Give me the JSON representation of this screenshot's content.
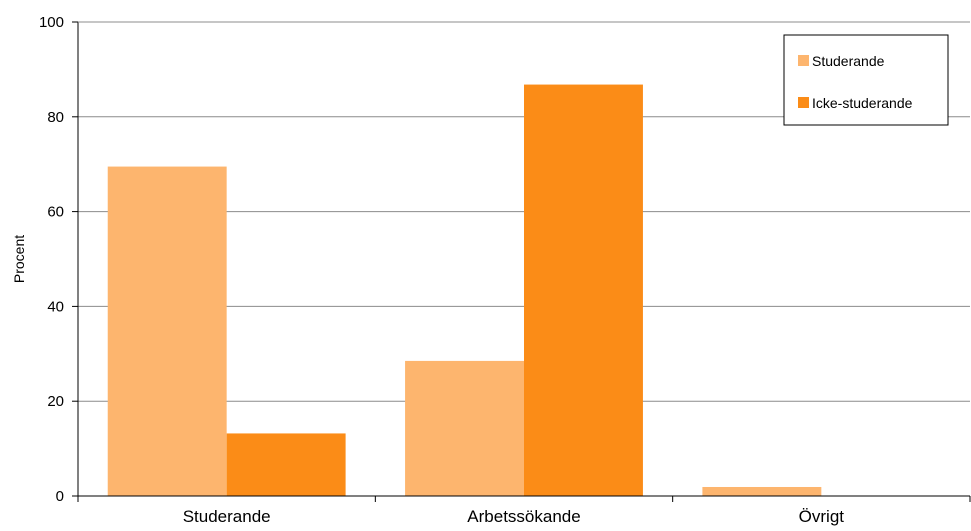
{
  "chart_data": {
    "type": "bar",
    "title": "",
    "xlabel": "",
    "ylabel": "Procent",
    "ylim": [
      0,
      100
    ],
    "yticks": [
      0,
      20,
      40,
      60,
      80,
      100
    ],
    "grid": true,
    "legend_position": "top-right",
    "categories": [
      "Studerande",
      "Arbetssökande",
      "Övrigt"
    ],
    "series": [
      {
        "name": "Studerande",
        "values": [
          69.5,
          28.5,
          1.9
        ],
        "color": "#FDB56E"
      },
      {
        "name": "Icke-studerande",
        "values": [
          13.2,
          86.8,
          0
        ],
        "color": "#FB8C17"
      }
    ]
  }
}
